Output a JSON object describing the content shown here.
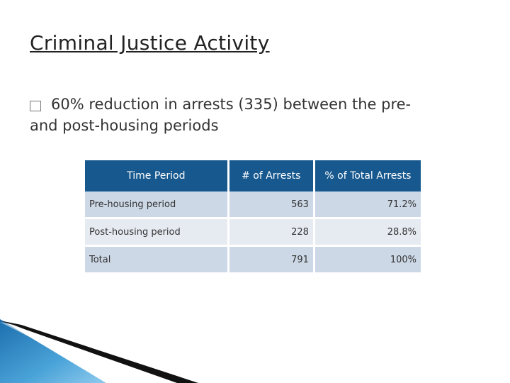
{
  "slide": {
    "title": "Criminal Justice Activity",
    "bullet": {
      "marker": "□",
      "text_line1": "60% reduction in arrests (335) between the pre-",
      "text_line2": "and post-housing periods"
    }
  },
  "table": {
    "headers": [
      "Time Period",
      "# of Arrests",
      "% of Total Arrests"
    ],
    "rows": [
      {
        "period": "Pre-housing period",
        "arrests": "563",
        "pct": "71.2%"
      },
      {
        "period": "Post-housing period",
        "arrests": "228",
        "pct": "28.8%"
      },
      {
        "period": "Total",
        "arrests": "791",
        "pct": "100%"
      }
    ]
  },
  "colors": {
    "header_bg": "#17588e",
    "row_dark": "#cdd8e6",
    "row_light": "#e6ebf2",
    "accent_corner": "#2a7fc1"
  }
}
